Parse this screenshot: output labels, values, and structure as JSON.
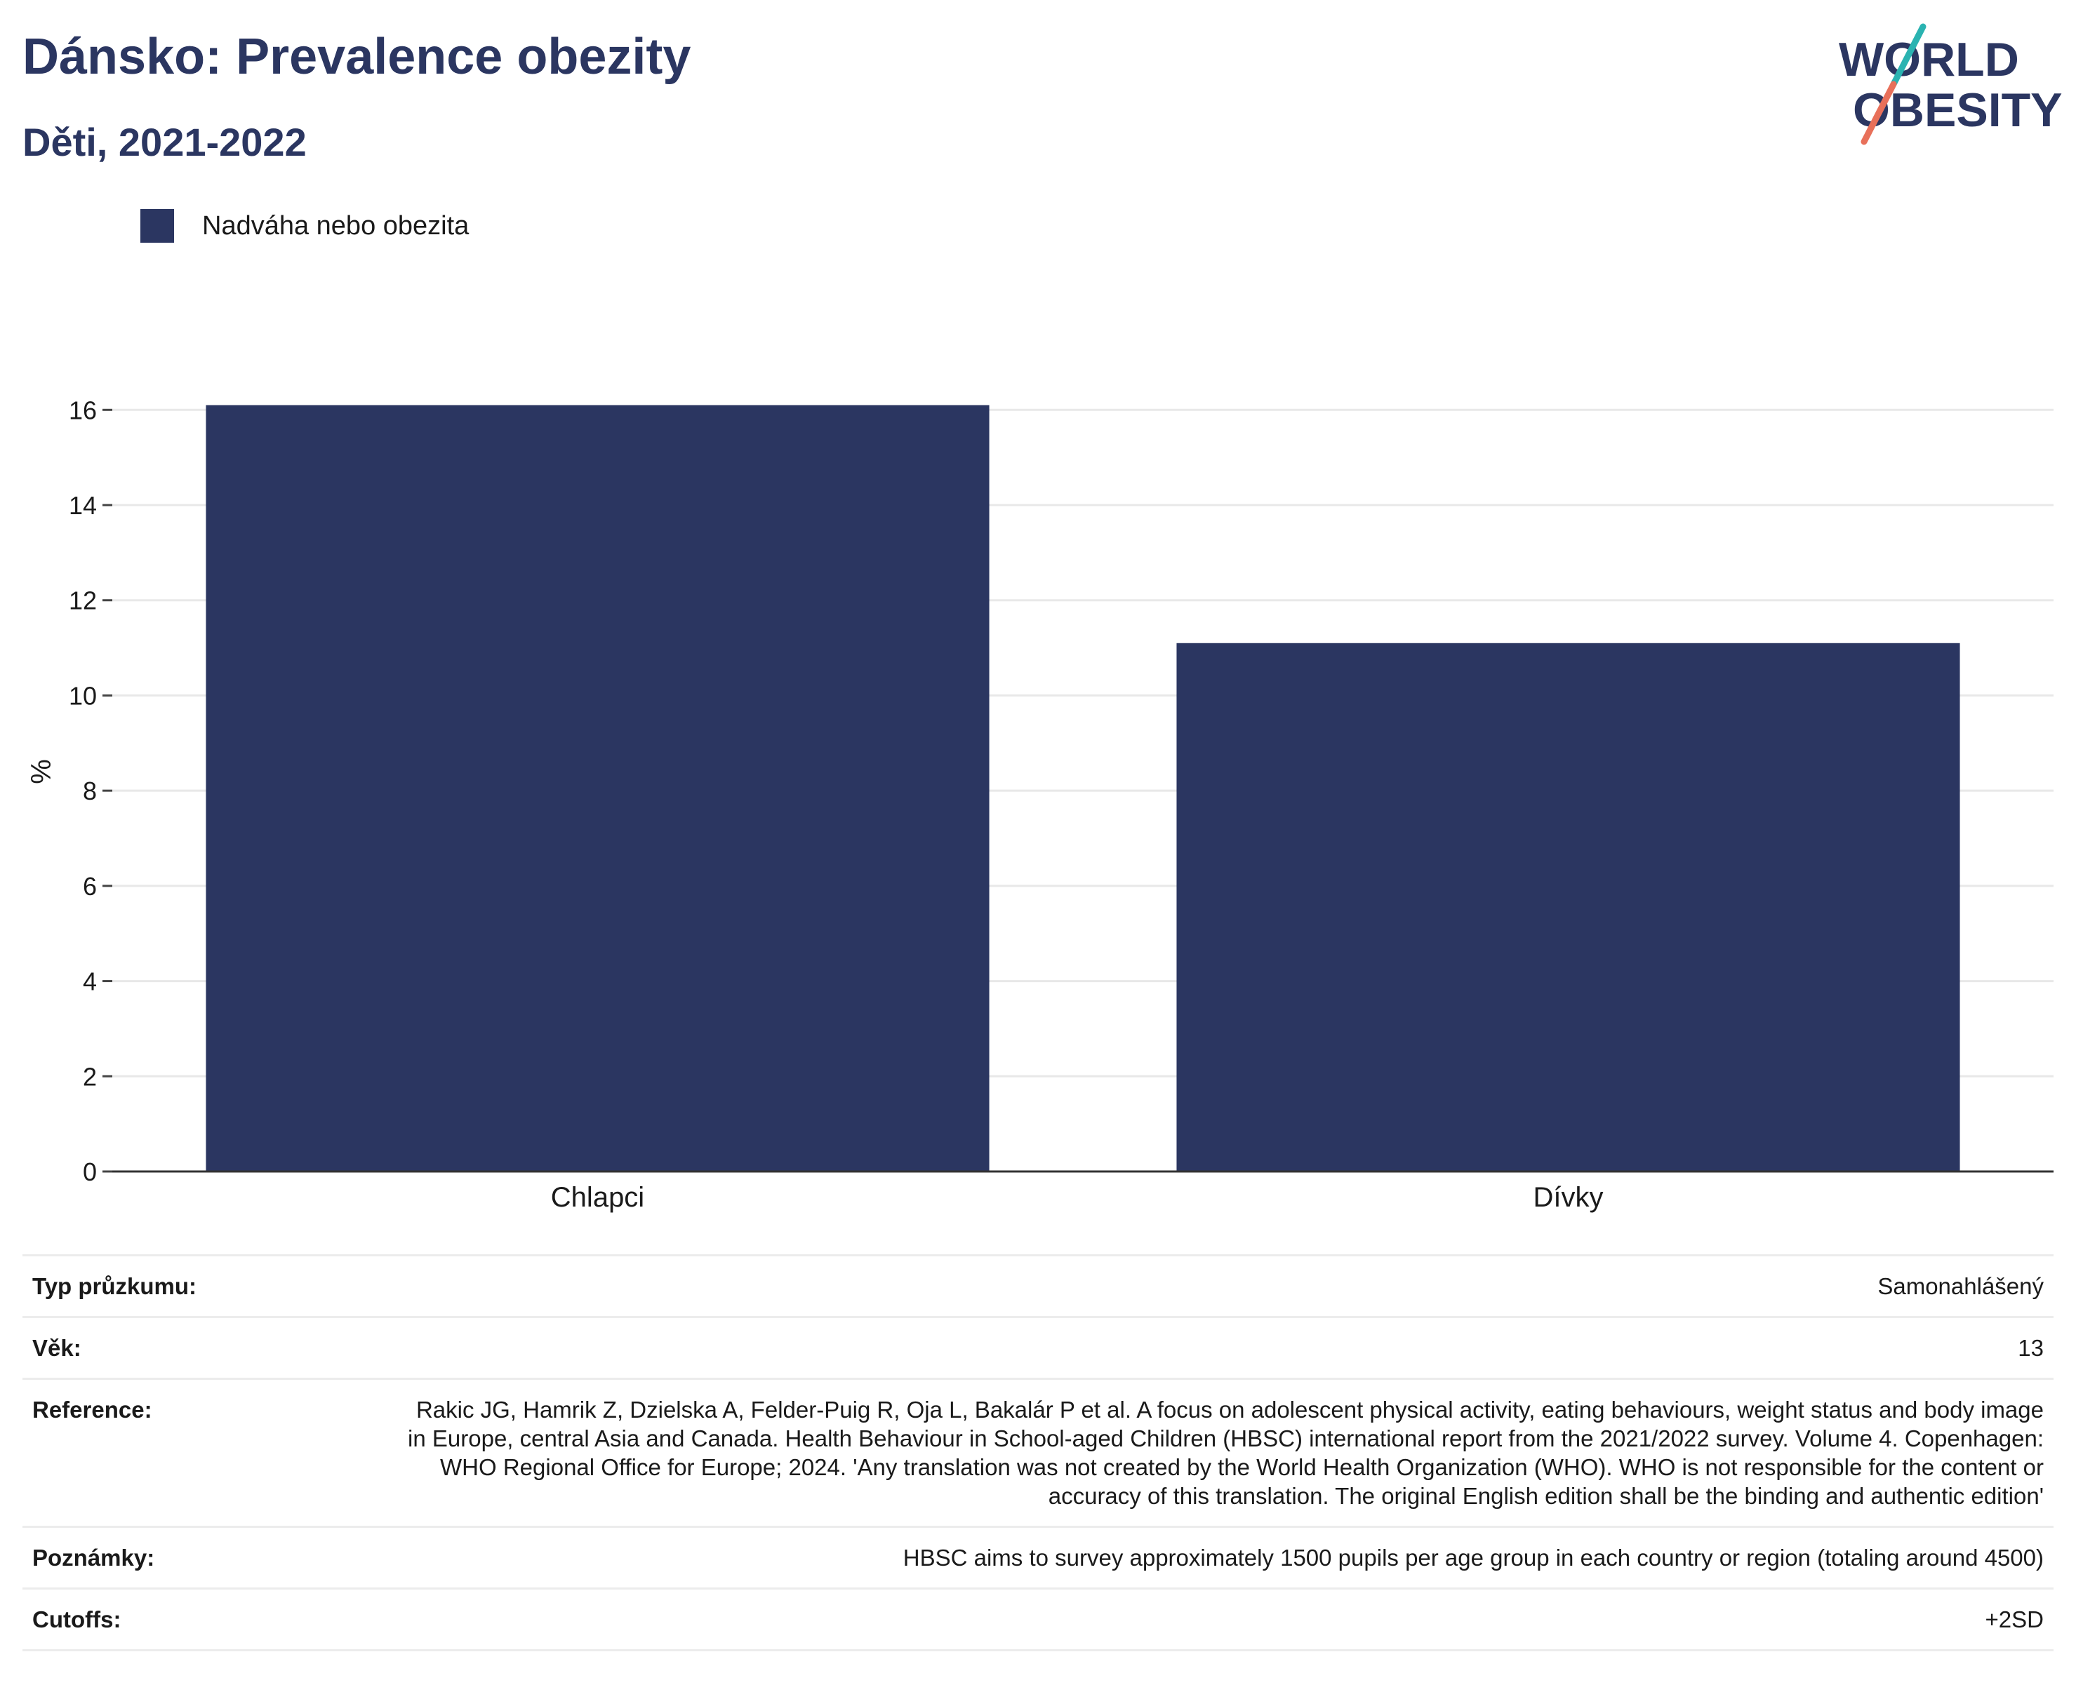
{
  "title": "Dánsko: Prevalence obezity",
  "subtitle": "Děti, 2021-2022",
  "logo": {
    "text_line1": "WORLD",
    "text_line2": "OBESITY",
    "accent_teal": "#2ab3b1",
    "accent_coral": "#e8705a"
  },
  "legend": {
    "items": [
      {
        "label": "Nadváha nebo obezita",
        "color": "#2b3661"
      }
    ]
  },
  "chart_data": {
    "type": "bar",
    "categories": [
      "Chlapci",
      "Dívky"
    ],
    "series": [
      {
        "name": "Nadváha nebo obezita",
        "values": [
          16.1,
          11.1
        ],
        "color": "#2b3661"
      }
    ],
    "ylabel": "%",
    "xlabel": "",
    "ylim": [
      0,
      16.8
    ],
    "yticks": [
      0,
      2,
      4,
      6,
      8,
      10,
      12,
      14,
      16
    ],
    "grid": true,
    "legend_position": "top-left"
  },
  "info": [
    {
      "key": "Typ průzkumu:",
      "value": "Samonahlášený"
    },
    {
      "key": "Věk:",
      "value": "13"
    },
    {
      "key": "Reference:",
      "value": "Rakic JG, Hamrik Z, Dzielska A, Felder-Puig R, Oja L, Bakalár P et al. A focus on adolescent physical activity, eating behaviours, weight status and body image in Europe, central Asia and Canada. Health Behaviour in School-aged Children (HBSC) international report from the 2021/2022 survey. Volume 4. Copenhagen: WHO Regional Office for Europe; 2024. 'Any translation was not created by the World Health Organization (WHO). WHO is not responsible for the content or accuracy of this translation. The original English edition shall be the binding and authentic edition'"
    },
    {
      "key": "Poznámky:",
      "value": "HBSC aims to survey approximately 1500 pupils per age group in each country or region (totaling around 4500)"
    },
    {
      "key": "Cutoffs:",
      "value": "+2SD"
    }
  ]
}
